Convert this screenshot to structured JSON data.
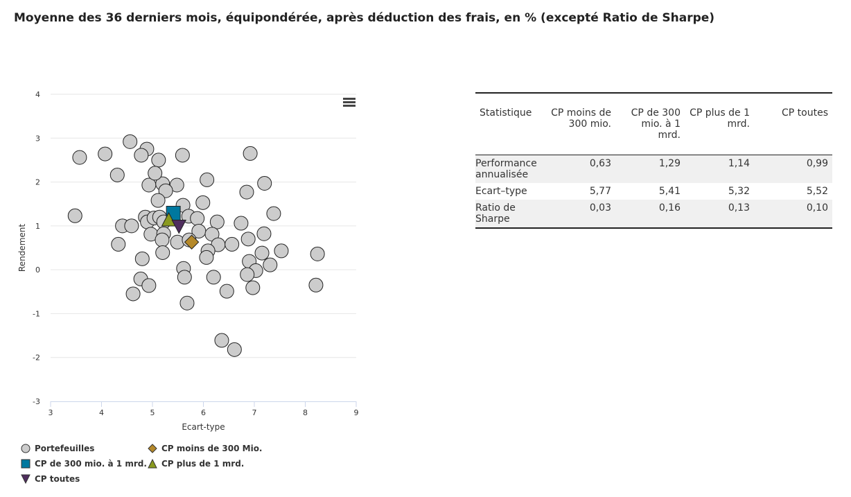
{
  "title": "Moyenne des 36 derniers mois, équipondérée, après déduction des frais, en % (excepté Ratio de Sharpe)",
  "chart_data": {
    "type": "scatter",
    "xlabel": "Ecart-type",
    "ylabel": "Rendement",
    "xlim": [
      3,
      9
    ],
    "ylim": [
      -3,
      4
    ],
    "xticks": [
      "3",
      "4",
      "5",
      "6",
      "7",
      "8",
      "9"
    ],
    "yticks": [
      "-3",
      "-2",
      "-1",
      "0",
      "1",
      "2",
      "3",
      "4"
    ],
    "grid": "horizontal",
    "legend_placement": "bottom-left",
    "series": [
      {
        "name": "Portefeuilles",
        "marker": "circle",
        "color": "#cccccc",
        "points": [
          [
            3.48,
            1.23
          ],
          [
            3.57,
            2.56
          ],
          [
            4.07,
            2.64
          ],
          [
            4.56,
            2.92
          ],
          [
            4.31,
            2.16
          ],
          [
            4.89,
            2.75
          ],
          [
            4.78,
            2.61
          ],
          [
            5.12,
            2.5
          ],
          [
            5.59,
            2.61
          ],
          [
            6.92,
            2.65
          ],
          [
            6.07,
            2.05
          ],
          [
            7.2,
            1.97
          ],
          [
            4.93,
            1.93
          ],
          [
            5.2,
            1.96
          ],
          [
            5.05,
            2.2
          ],
          [
            5.48,
            1.93
          ],
          [
            5.26,
            1.8
          ],
          [
            5.11,
            1.58
          ],
          [
            5.6,
            1.47
          ],
          [
            5.99,
            1.53
          ],
          [
            6.85,
            1.77
          ],
          [
            7.38,
            1.28
          ],
          [
            4.41,
            1.0
          ],
          [
            4.59,
            1.0
          ],
          [
            4.86,
            1.2
          ],
          [
            4.9,
            1.09
          ],
          [
            5.03,
            1.18
          ],
          [
            5.14,
            1.2
          ],
          [
            5.22,
            1.09
          ],
          [
            5.71,
            1.22
          ],
          [
            5.88,
            1.17
          ],
          [
            6.27,
            1.09
          ],
          [
            6.74,
            1.06
          ],
          [
            7.19,
            0.82
          ],
          [
            5.91,
            0.88
          ],
          [
            6.17,
            0.81
          ],
          [
            4.97,
            0.81
          ],
          [
            5.22,
            0.82
          ],
          [
            5.19,
            0.68
          ],
          [
            5.49,
            0.63
          ],
          [
            4.33,
            0.58
          ],
          [
            6.29,
            0.57
          ],
          [
            6.56,
            0.58
          ],
          [
            6.88,
            0.7
          ],
          [
            6.09,
            0.43
          ],
          [
            6.06,
            0.28
          ],
          [
            5.2,
            0.39
          ],
          [
            4.8,
            0.25
          ],
          [
            7.15,
            0.38
          ],
          [
            6.9,
            0.19
          ],
          [
            7.31,
            0.11
          ],
          [
            7.53,
            0.43
          ],
          [
            8.24,
            0.36
          ],
          [
            5.61,
            0.03
          ],
          [
            7.03,
            -0.02
          ],
          [
            5.63,
            -0.17
          ],
          [
            4.77,
            -0.21
          ],
          [
            4.93,
            -0.36
          ],
          [
            6.2,
            -0.17
          ],
          [
            6.86,
            -0.11
          ],
          [
            6.97,
            -0.41
          ],
          [
            8.21,
            -0.35
          ],
          [
            4.62,
            -0.55
          ],
          [
            6.46,
            -0.49
          ],
          [
            5.68,
            -0.76
          ],
          [
            6.36,
            -1.61
          ],
          [
            6.61,
            -1.82
          ],
          [
            5.72,
            0.68
          ]
        ]
      },
      {
        "name": "CP moins de 300 Mio.",
        "marker": "diamond",
        "color": "#b5892a",
        "points": [
          [
            5.77,
            0.63
          ]
        ]
      },
      {
        "name": "CP de 300 mio. à 1 mrd.",
        "marker": "square",
        "color": "#00789f",
        "points": [
          [
            5.41,
            1.29
          ]
        ]
      },
      {
        "name": "CP plus de 1 mrd.",
        "marker": "triangle",
        "color": "#8a9a1f",
        "points": [
          [
            5.32,
            1.14
          ]
        ]
      },
      {
        "name": "CP toutes",
        "marker": "triangle-down",
        "color": "#4f2e5e",
        "points": [
          [
            5.52,
            0.99
          ]
        ]
      }
    ]
  },
  "table": {
    "headers": [
      "Statistique",
      "CP moins de 300 mio.",
      "CP de 300 mio. à 1 mrd.",
      "CP plus de 1 mrd.",
      "CP toutes"
    ],
    "rows": [
      [
        "Performance annualisée",
        "0,63",
        "1,29",
        "1,14",
        "0,99"
      ],
      [
        "Ecart–type",
        "5,77",
        "5,41",
        "5,32",
        "5,52"
      ],
      [
        "Ratio de Sharpe",
        "0,03",
        "0,16",
        "0,13",
        "0,10"
      ]
    ]
  }
}
